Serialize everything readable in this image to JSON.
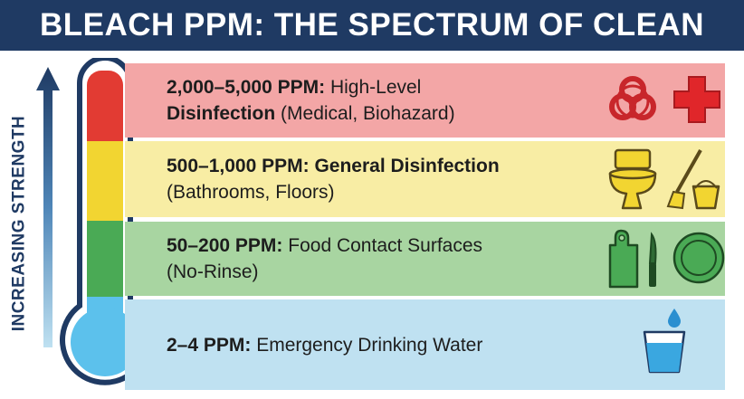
{
  "title": "BLEACH PPM: THE SPECTRUM OF CLEAN",
  "axis_label": "INCREASING STRENGTH",
  "levels": [
    {
      "range": "2,000–5,000 PPM:",
      "text_a": " High-Level",
      "bold_b": "Disinfection",
      "text_b": " (Medical, Biohazard)",
      "color": "#f3a6a6",
      "icons": [
        "biohazard-icon",
        "medical-cross-icon"
      ]
    },
    {
      "range": "500–1,000 PPM:",
      "text_a": " General Disinfection",
      "text_b": "(Bathrooms, Floors)",
      "color": "#f8eda4",
      "icons": [
        "toilet-icon",
        "mop-bucket-icon"
      ]
    },
    {
      "range": "50–200 PPM:",
      "text_a": " Food Contact Surfaces",
      "text_b": "(No-Rinse)",
      "color": "#a8d5a1",
      "icons": [
        "cutting-board-knife-icon",
        "plate-icon"
      ]
    },
    {
      "range": "2–4 PPM:",
      "text_a": " Emergency Drinking Water",
      "color": "#bfe1f1",
      "icons": [
        "water-glass-icon"
      ]
    }
  ],
  "colors": {
    "navy": "#1f3a63",
    "red": "#e23b33",
    "yellow": "#f2d531",
    "green": "#4aaa55",
    "blue": "#5cc1ec"
  }
}
